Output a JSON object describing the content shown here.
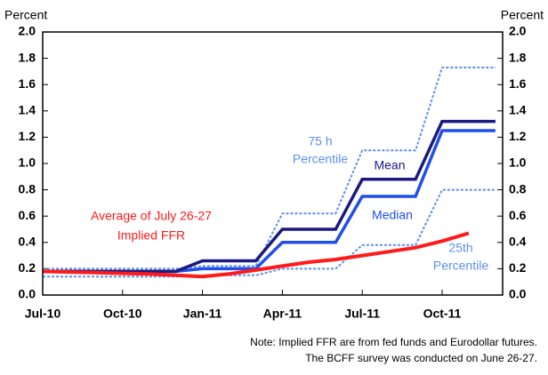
{
  "chart_data": {
    "type": "line",
    "y_label": "Percent",
    "y2_label": "Percent",
    "x": [
      "Jul-10",
      "Aug-10",
      "Sep-10",
      "Oct-10",
      "Nov-10",
      "Dec-10",
      "Jan-11",
      "Feb-11",
      "Mar-11",
      "Apr-11",
      "May-11",
      "Jun-11",
      "Jul-11",
      "Aug-11",
      "Sep-11",
      "Oct-11",
      "Nov-11",
      "Dec-11"
    ],
    "xticks": [
      "Jul-10",
      "Oct-10",
      "Jan-11",
      "Apr-11",
      "Jul-11",
      "Oct-11"
    ],
    "ylim": [
      0,
      2
    ],
    "yticks": [
      {
        "value": 0,
        "label": "0.0"
      },
      0.2,
      0.4,
      0.6,
      0.8,
      {
        "value": 1,
        "label": "1.0"
      },
      1.2,
      1.4,
      1.6,
      1.8,
      {
        "value": 2,
        "label": "2.0"
      }
    ],
    "y2lim": [
      0,
      2
    ],
    "y2ticks": [
      {
        "value": 0,
        "label": "0.0"
      },
      0.2,
      0.4,
      0.6,
      0.8,
      {
        "value": 1,
        "label": "1.0"
      },
      1.2,
      1.4,
      1.6,
      1.8,
      {
        "value": 2,
        "label": "2.0"
      }
    ],
    "series": [
      {
        "name": [
          "75 h",
          "Percentile"
        ],
        "color": "#5b8ff0",
        "dashed": true,
        "values": [
          0.2,
          0.2,
          0.2,
          0.2,
          0.2,
          0.2,
          0.22,
          0.22,
          0.22,
          0.62,
          0.62,
          0.62,
          1.1,
          1.1,
          1.1,
          1.73,
          1.73,
          1.73
        ]
      },
      {
        "name": [
          "25th",
          "Percentile"
        ],
        "color": "#5b8ff0",
        "dashed": true,
        "values": [
          0.14,
          0.14,
          0.14,
          0.14,
          0.14,
          0.14,
          0.15,
          0.15,
          0.15,
          0.2,
          0.2,
          0.2,
          0.38,
          0.38,
          0.38,
          0.8,
          0.8,
          0.8
        ]
      },
      {
        "name": [
          "Median"
        ],
        "color": "#1f4fe8",
        "values": [
          0.18,
          0.18,
          0.18,
          0.18,
          0.18,
          0.18,
          0.2,
          0.2,
          0.2,
          0.4,
          0.4,
          0.4,
          0.75,
          0.75,
          0.75,
          1.25,
          1.25,
          1.25
        ]
      },
      {
        "name": [
          "Mean"
        ],
        "color": "#1a1a80",
        "values": [
          0.18,
          0.18,
          0.18,
          0.18,
          0.18,
          0.18,
          0.26,
          0.26,
          0.26,
          0.5,
          0.5,
          0.5,
          0.88,
          0.88,
          0.88,
          1.32,
          1.32,
          1.32
        ]
      },
      {
        "name": [
          "Average of July 26-27",
          "Implied FFR"
        ],
        "color": "#ff1a1a",
        "values": [
          0.18,
          0.175,
          0.17,
          0.165,
          0.16,
          0.15,
          0.14,
          0.16,
          0.19,
          0.22,
          0.25,
          0.27,
          0.3,
          0.33,
          0.36,
          0.41,
          0.47,
          null
        ]
      }
    ],
    "note": [
      "Note: Implied FFR are from fed funds and Eurodollar futures.",
      "The BCFF survey was conducted on June 26-27."
    ]
  }
}
